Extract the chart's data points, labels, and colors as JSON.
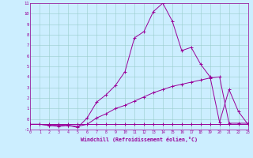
{
  "xlabel": "Windchill (Refroidissement éolien,°C)",
  "bg_color": "#cceeff",
  "line_color": "#990099",
  "xmin": 0,
  "xmax": 23,
  "ymin": -1,
  "ymax": 11,
  "lines": [
    {
      "x": [
        0,
        1,
        2,
        3,
        4,
        5,
        6,
        7,
        8,
        9,
        10,
        11,
        12,
        13,
        14,
        15,
        16,
        17,
        18,
        19,
        20,
        21,
        22,
        23
      ],
      "y": [
        -0.5,
        -0.5,
        -0.5,
        -0.5,
        -0.5,
        -0.5,
        -0.5,
        -0.5,
        -0.5,
        -0.5,
        -0.5,
        -0.5,
        -0.5,
        -0.5,
        -0.5,
        -0.5,
        -0.5,
        -0.5,
        -0.5,
        -0.5,
        -0.5,
        -0.5,
        -0.5,
        -0.5
      ]
    },
    {
      "x": [
        0,
        1,
        2,
        3,
        4,
        5,
        6,
        7,
        8,
        9,
        10,
        11,
        12,
        13,
        14,
        15,
        16,
        17,
        18,
        19,
        20,
        21,
        22,
        23
      ],
      "y": [
        -0.5,
        -0.5,
        -0.6,
        -0.6,
        -0.6,
        -0.7,
        -0.5,
        0.1,
        0.5,
        1.0,
        1.3,
        1.7,
        2.1,
        2.5,
        2.8,
        3.1,
        3.3,
        3.5,
        3.7,
        3.9,
        4.0,
        -0.4,
        -0.4,
        -0.4
      ]
    },
    {
      "x": [
        0,
        1,
        2,
        3,
        4,
        5,
        6,
        7,
        8,
        9,
        10,
        11,
        12,
        13,
        14,
        15,
        16,
        17,
        18,
        19,
        20,
        21,
        22,
        23
      ],
      "y": [
        -0.5,
        -0.5,
        -0.6,
        -0.7,
        -0.6,
        -0.8,
        0.1,
        1.6,
        2.3,
        3.2,
        4.5,
        7.7,
        8.3,
        10.2,
        11.0,
        9.3,
        6.5,
        6.8,
        5.2,
        4.0,
        -0.3,
        2.8,
        0.7,
        -0.5
      ]
    }
  ],
  "xtick_labels": [
    "0",
    "1",
    "2",
    "3",
    "4",
    "5",
    "6",
    "7",
    "8",
    "9",
    "10",
    "11",
    "12",
    "13",
    "14",
    "15",
    "16",
    "17",
    "18",
    "19",
    "20",
    "21",
    "22",
    "23"
  ],
  "ytick_labels": [
    "-1",
    "0",
    "1",
    "2",
    "3",
    "4",
    "5",
    "6",
    "7",
    "8",
    "9",
    "10",
    "11"
  ],
  "ytick_vals": [
    -1,
    0,
    1,
    2,
    3,
    4,
    5,
    6,
    7,
    8,
    9,
    10,
    11
  ]
}
